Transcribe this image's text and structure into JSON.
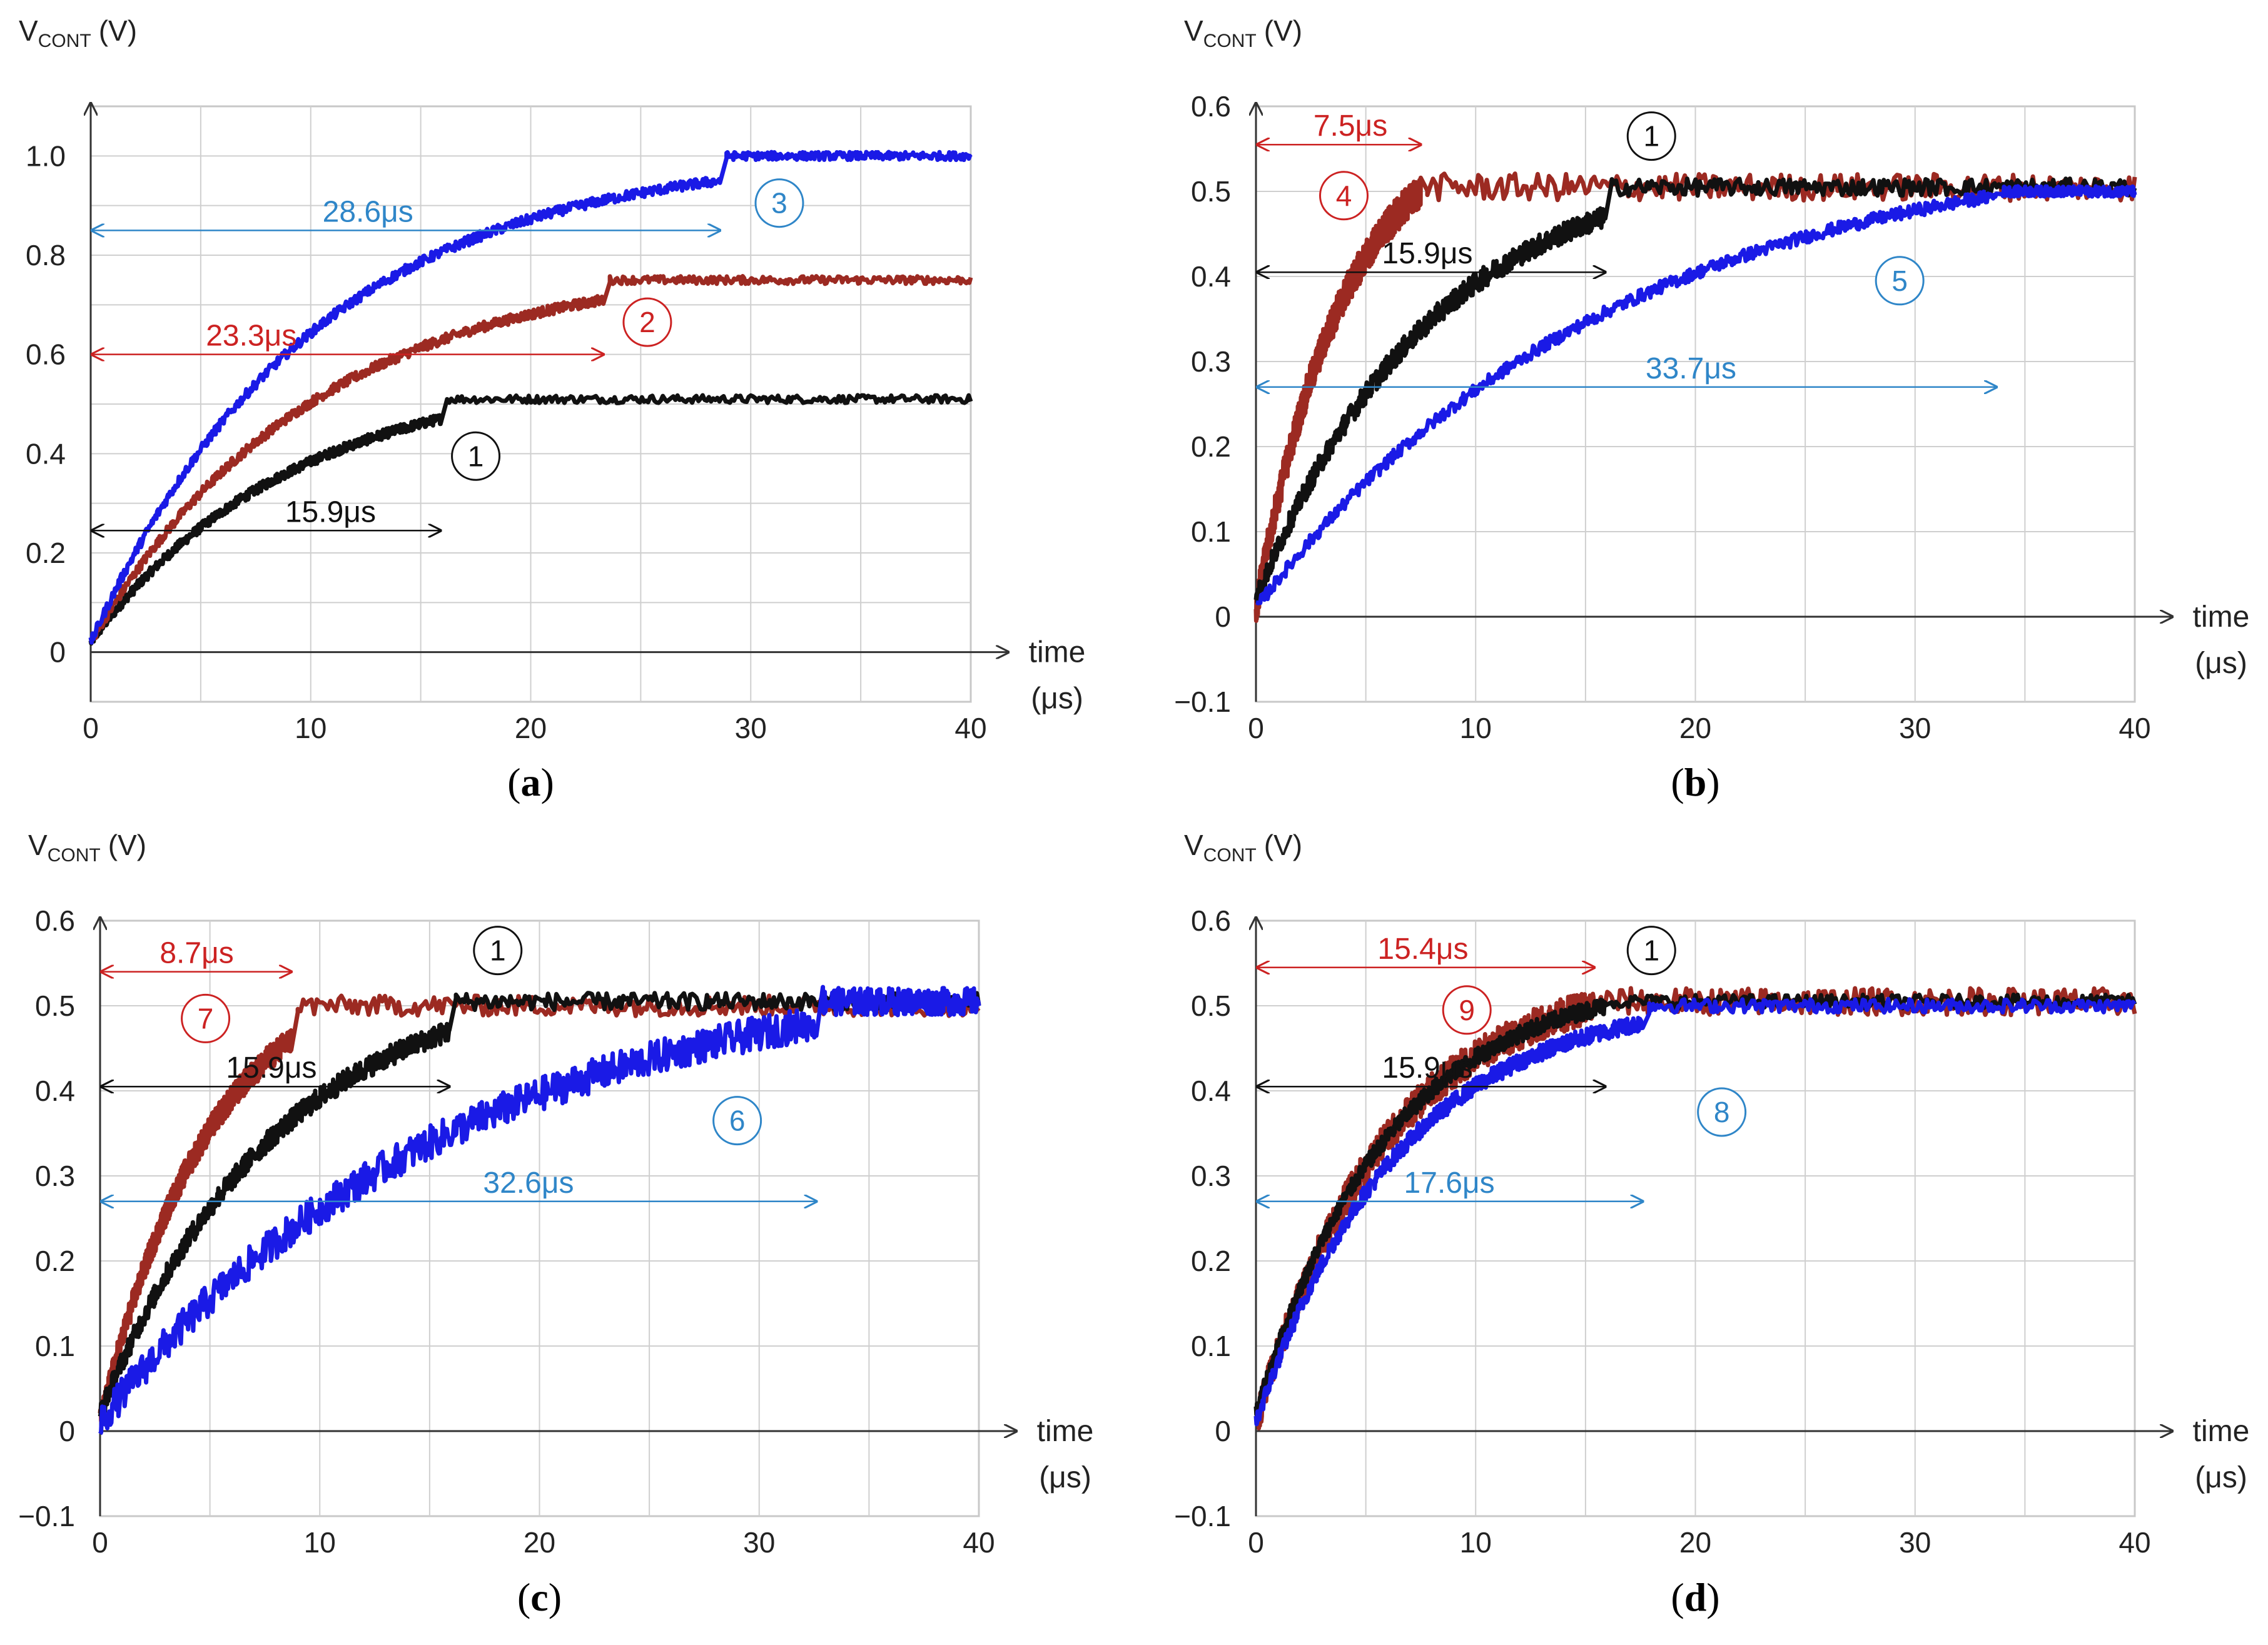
{
  "colors": {
    "curve_1": "#111111",
    "curve_red": "#9c2a22",
    "curve_blue": "#1a1ae6",
    "anno_black": "#111111",
    "anno_red": "#cc2222",
    "anno_blue": "#2f86c8",
    "grid": "#cfcfcf"
  },
  "chart_data": [
    {
      "id": "a",
      "type": "line",
      "panel_label": "a",
      "ylabel_main": "V",
      "ylabel_sub": "CONT",
      "ylabel_unit": "(V)",
      "xlabel_1": "time",
      "xlabel_2": "(μs)",
      "xlim": [
        0,
        40
      ],
      "ylim": [
        -0.1,
        1.1
      ],
      "xticks": [
        0,
        10,
        20,
        30,
        40
      ],
      "xtick_labels": [
        "0",
        "10",
        "20",
        "30",
        "40"
      ],
      "yticks": [
        0,
        0.2,
        0.4,
        0.6,
        0.8,
        1.0
      ],
      "ytick_labels": [
        "0",
        "0.2",
        "0.4",
        "0.6",
        "0.8",
        "1.0"
      ],
      "grid_x_step": 5,
      "grid_y_step": 0.1,
      "series": [
        {
          "name": "1",
          "color": "#111111",
          "t_settle": 15.9,
          "v_final": 0.51,
          "v_pre": 0.45,
          "tau": 9,
          "noise": 0.02
        },
        {
          "name": "2",
          "color": "#9c2a22",
          "t_settle": 23.3,
          "v_final": 0.75,
          "v_pre": 0.69,
          "tau": 10,
          "noise": 0.02
        },
        {
          "name": "3",
          "color": "#1a1ae6",
          "t_settle": 28.6,
          "v_final": 1.0,
          "v_pre": 0.93,
          "tau": 10,
          "noise": 0.02
        }
      ],
      "annotations": [
        {
          "text": "15.9μs",
          "color": "#111111",
          "value_y": 0.245,
          "x_end": 15.9,
          "text_x": 10.9
        },
        {
          "text": "23.3μs",
          "color": "#cc2222",
          "value_y": 0.6,
          "x_end": 23.3,
          "text_x": 7.3
        },
        {
          "text": "28.6μs",
          "color": "#2f86c8",
          "value_y": 0.85,
          "x_end": 28.6,
          "text_x": 12.6
        }
      ],
      "markers": [
        {
          "label": "1",
          "color": "#111111",
          "x": 17.5,
          "y": 0.395
        },
        {
          "label": "2",
          "color": "#cc2222",
          "x": 25.3,
          "y": 0.665
        },
        {
          "label": "3",
          "color": "#2f86c8",
          "x": 31.3,
          "y": 0.905
        }
      ]
    },
    {
      "id": "b",
      "type": "line",
      "panel_label": "b",
      "ylabel_main": "V",
      "ylabel_sub": "CONT",
      "ylabel_unit": "(V)",
      "xlabel_1": "time",
      "xlabel_2": "(μs)",
      "xlim": [
        0,
        40
      ],
      "ylim": [
        -0.1,
        0.6
      ],
      "xticks": [
        0,
        10,
        20,
        30,
        40
      ],
      "xtick_labels": [
        "0",
        "10",
        "20",
        "30",
        "40"
      ],
      "yticks": [
        -0.1,
        0,
        0.1,
        0.2,
        0.3,
        0.4,
        0.5,
        0.6
      ],
      "ytick_labels": [
        "−0.1",
        "0",
        "0.1",
        "0.2",
        "0.3",
        "0.4",
        "0.5",
        "0.6"
      ],
      "grid_x_step": 5,
      "grid_y_step": 0.1,
      "series": [
        {
          "name": "4",
          "color": "#9c2a22",
          "t_settle": 7.5,
          "v_final": 0.505,
          "v_pre": 0.49,
          "tau": 4,
          "noise": 0.04
        },
        {
          "name": "1",
          "color": "#111111",
          "t_settle": 15.9,
          "v_final": 0.505,
          "v_pre": 0.45,
          "tau": 8,
          "noise": 0.025
        },
        {
          "name": "5",
          "color": "#1a1ae6",
          "t_settle": 33.7,
          "v_final": 0.5,
          "v_pre": 0.485,
          "tau": 16,
          "noise": 0.015
        }
      ],
      "annotations": [
        {
          "text": "7.5μs",
          "color": "#cc2222",
          "value_y": 0.555,
          "x_end": 7.5,
          "text_x": 4.3
        },
        {
          "text": "15.9μs",
          "color": "#111111",
          "value_y": 0.405,
          "x_end": 15.9,
          "text_x": 7.8
        },
        {
          "text": "33.7μs",
          "color": "#2f86c8",
          "value_y": 0.27,
          "x_end": 33.7,
          "text_x": 19.8
        }
      ],
      "markers": [
        {
          "label": "4",
          "color": "#cc2222",
          "x": 4.0,
          "y": 0.495
        },
        {
          "label": "1",
          "color": "#111111",
          "x": 18.0,
          "y": 0.565
        },
        {
          "label": "5",
          "color": "#2f86c8",
          "x": 29.3,
          "y": 0.395
        }
      ]
    },
    {
      "id": "c",
      "type": "line",
      "panel_label": "c",
      "ylabel_main": "V",
      "ylabel_sub": "CONT",
      "ylabel_unit": "(V)",
      "xlabel_1": "time",
      "xlabel_2": "(μs)",
      "xlim": [
        0,
        40
      ],
      "ylim": [
        -0.1,
        0.6
      ],
      "xticks": [
        0,
        10,
        20,
        30,
        40
      ],
      "xtick_labels": [
        "0",
        "10",
        "20",
        "30",
        "40"
      ],
      "yticks": [
        -0.1,
        0,
        0.1,
        0.2,
        0.3,
        0.4,
        0.5,
        0.6
      ],
      "ytick_labels": [
        "−0.1",
        "0",
        "0.1",
        "0.2",
        "0.3",
        "0.4",
        "0.5",
        "0.6"
      ],
      "grid_x_step": 5,
      "grid_y_step": 0.1,
      "series": [
        {
          "name": "7",
          "color": "#9c2a22",
          "t_settle": 8.7,
          "v_final": 0.5,
          "v_pre": 0.45,
          "tau": 5,
          "noise": 0.03
        },
        {
          "name": "1",
          "color": "#111111",
          "t_settle": 15.9,
          "v_final": 0.505,
          "v_pre": 0.45,
          "tau": 8,
          "noise": 0.025
        },
        {
          "name": "6",
          "color": "#1a1ae6",
          "t_settle": 32.6,
          "v_final": 0.505,
          "v_pre": 0.47,
          "tau": 16,
          "noise": 0.04
        }
      ],
      "annotations": [
        {
          "text": "8.7μs",
          "color": "#cc2222",
          "value_y": 0.54,
          "x_end": 8.7,
          "text_x": 4.4
        },
        {
          "text": "15.9μs",
          "color": "#111111",
          "value_y": 0.405,
          "x_end": 15.9,
          "text_x": 7.8
        },
        {
          "text": "32.6μs",
          "color": "#2f86c8",
          "value_y": 0.27,
          "x_end": 32.6,
          "text_x": 19.5
        }
      ],
      "markers": [
        {
          "label": "7",
          "color": "#cc2222",
          "x": 4.8,
          "y": 0.485
        },
        {
          "label": "1",
          "color": "#111111",
          "x": 18.1,
          "y": 0.565
        },
        {
          "label": "6",
          "color": "#2f86c8",
          "x": 29.0,
          "y": 0.365
        }
      ]
    },
    {
      "id": "d",
      "type": "line",
      "panel_label": "d",
      "ylabel_main": "V",
      "ylabel_sub": "CONT",
      "ylabel_unit": "(V)",
      "xlabel_1": "time",
      "xlabel_2": "(μs)",
      "xlim": [
        0,
        40
      ],
      "ylim": [
        -0.1,
        0.6
      ],
      "xticks": [
        0,
        10,
        20,
        30,
        40
      ],
      "xtick_labels": [
        "0",
        "10",
        "20",
        "30",
        "40"
      ],
      "yticks": [
        -0.1,
        0,
        0.1,
        0.2,
        0.3,
        0.4,
        0.5,
        0.6
      ],
      "ytick_labels": [
        "−0.1",
        "0",
        "0.1",
        "0.2",
        "0.3",
        "0.4",
        "0.5",
        "0.6"
      ],
      "grid_x_step": 5,
      "grid_y_step": 0.1,
      "series": [
        {
          "name": "9",
          "color": "#9c2a22",
          "t_settle": 15.4,
          "v_final": 0.505,
          "v_pre": 0.49,
          "tau": 6,
          "noise": 0.04
        },
        {
          "name": "1",
          "color": "#111111",
          "t_settle": 15.9,
          "v_final": 0.505,
          "v_pre": 0.48,
          "tau": 6,
          "noise": 0.02
        },
        {
          "name": "8",
          "color": "#1a1ae6",
          "t_settle": 17.6,
          "v_final": 0.5,
          "v_pre": 0.47,
          "tau": 6.5,
          "noise": 0.02
        }
      ],
      "annotations": [
        {
          "text": "15.4μs",
          "color": "#cc2222",
          "value_y": 0.545,
          "x_end": 15.4,
          "text_x": 7.6
        },
        {
          "text": "15.9μs",
          "color": "#111111",
          "value_y": 0.405,
          "x_end": 15.9,
          "text_x": 7.8
        },
        {
          "text": "17.6μs",
          "color": "#2f86c8",
          "value_y": 0.27,
          "x_end": 17.6,
          "text_x": 8.8
        }
      ],
      "markers": [
        {
          "label": "1",
          "color": "#111111",
          "x": 18.0,
          "y": 0.565
        },
        {
          "label": "9",
          "color": "#cc2222",
          "x": 9.6,
          "y": 0.495
        },
        {
          "label": "8",
          "color": "#2f86c8",
          "x": 21.2,
          "y": 0.375
        }
      ]
    }
  ]
}
